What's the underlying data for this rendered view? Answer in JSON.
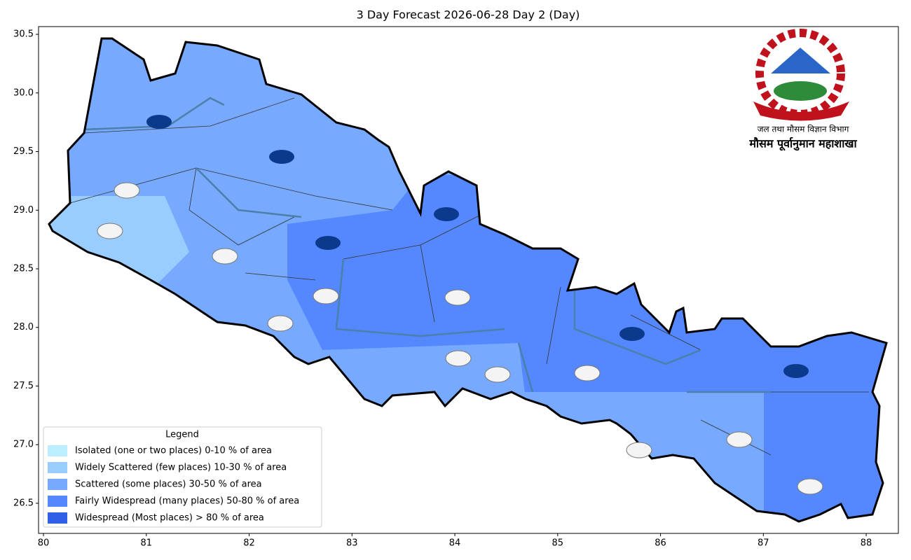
{
  "chart_data": {
    "type": "map",
    "title": "3 Day Forecast 2026-06-28 Day 2 (Day)",
    "xlim": [
      79.952,
      88.313
    ],
    "ylim": [
      26.243,
      30.566
    ],
    "xticks": [
      80,
      81,
      82,
      83,
      84,
      85,
      86,
      87,
      88
    ],
    "yticks": [
      26.5,
      {
        "value": 27,
        "label": "27.0"
      },
      27.5,
      {
        "value": 28,
        "label": "28.0"
      },
      28.5,
      {
        "value": 29,
        "label": "29.0"
      },
      29.5,
      {
        "value": 30,
        "label": "30.0"
      },
      30.5
    ],
    "legend_title": "Legend",
    "legend": [
      {
        "name": "Isolated (one or two places)  0-10 % of area",
        "color": "#bbeeff"
      },
      {
        "name": "Widely Scattered (few places)  10-30 % of area",
        "color": "#99ccff"
      },
      {
        "name": "Scattered (some places)  30-50 % of area",
        "color": "#77aaff"
      },
      {
        "name": "Fairly Widespread (many places)  50-80 % of area",
        "color": "#5588ff"
      },
      {
        "name": "Widespread (Most places) > 80 % of area",
        "color": "#3060e8"
      }
    ],
    "logo_texts": [
      "जल तथा मौसम विज्ञान विभाग",
      "मौसम पूर्वानुमान महाशाखा"
    ]
  }
}
